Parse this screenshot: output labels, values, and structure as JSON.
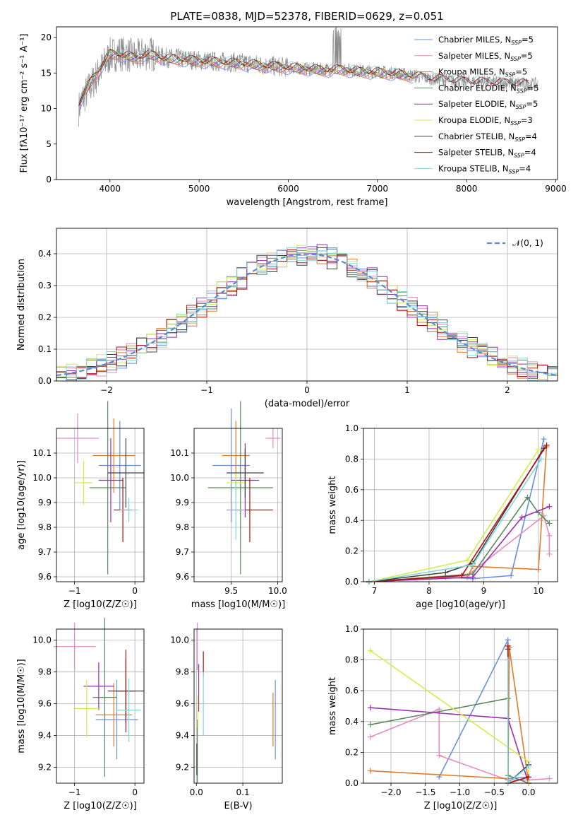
{
  "figure": {
    "title": "PLATE=0838, MJD=52378, FIBERID=0629, z=0.051"
  },
  "series": [
    {
      "name": "Chabrier MILES",
      "nssp": "5",
      "color": "#6a8fe0"
    },
    {
      "name": "Salpeter MILES",
      "nssp": "5",
      "color": "#e78ac3"
    },
    {
      "name": "Kroupa MILES",
      "nssp": "5",
      "color": "#e07b2a"
    },
    {
      "name": "Chabrier ELODIE",
      "nssp": "5",
      "color": "#5b8a5b"
    },
    {
      "name": "Salpeter ELODIE",
      "nssp": "5",
      "color": "#9a2fb0"
    },
    {
      "name": "Kroupa ELODIE",
      "nssp": "3",
      "color": "#d3ec4e"
    },
    {
      "name": "Chabrier STELIB",
      "nssp": "4",
      "color": "#404040"
    },
    {
      "name": "Salpeter STELIB",
      "nssp": "4",
      "color": "#b01010"
    },
    {
      "name": "Kroupa STELIB",
      "nssp": "4",
      "color": "#7fd8d8"
    }
  ],
  "chart_data": [
    {
      "id": "spectrum",
      "type": "line",
      "title": "PLATE=0838, MJD=52378, FIBERID=0629, z=0.051",
      "xlabel": "wavelength [Angstrom, rest frame]",
      "ylabel": "Flux [fλ10⁻¹⁷ erg cm⁻² s⁻¹ A⁻¹]",
      "xlim": [
        3400,
        9020
      ],
      "ylim": [
        0,
        21.5
      ],
      "xticks": [
        4000,
        5000,
        6000,
        7000,
        8000,
        9000
      ],
      "yticks": [
        0,
        5,
        10,
        15,
        20
      ],
      "legend": "upper-right",
      "data_color": "#8c8c8c",
      "data_x": [
        3650,
        3700,
        3800,
        3900,
        4000,
        4100,
        4200,
        4300,
        4400,
        4500,
        4600,
        4800,
        5000,
        5200,
        5400,
        5600,
        5800,
        6000,
        6200,
        6400,
        6600,
        6800,
        7000,
        7200,
        7400,
        7600,
        7800,
        8000,
        8200,
        8400,
        8600,
        8800
      ],
      "data_y": [
        10.0,
        11.5,
        13.5,
        15.5,
        17.5,
        17.8,
        17.6,
        17.2,
        17.8,
        17.6,
        17.2,
        17.0,
        16.8,
        16.6,
        16.5,
        16.3,
        16.0,
        15.8,
        15.6,
        15.5,
        15.6,
        15.3,
        15.2,
        15.0,
        14.6,
        14.2,
        14.0,
        13.8,
        13.7,
        13.6,
        13.5,
        13.4
      ],
      "model_x": [
        3650,
        3700,
        3800,
        3900,
        4000,
        4100,
        4200,
        4300,
        4400,
        4500,
        4600,
        4800,
        5000,
        5200,
        5400,
        5600,
        5800,
        6000,
        6200,
        6400,
        6600,
        6800,
        7000,
        7200,
        7400,
        7500,
        7600,
        7800,
        8000,
        8200,
        8400,
        8600,
        8700
      ],
      "model_y": [
        10.5,
        11.8,
        14.0,
        15.8,
        17.6,
        17.5,
        17.3,
        17.0,
        17.5,
        17.4,
        17.0,
        16.8,
        16.6,
        16.5,
        16.3,
        16.1,
        15.9,
        15.7,
        15.5,
        15.3,
        15.4,
        15.1,
        15.0,
        14.8,
        14.5,
        14.3,
        14.1,
        13.9,
        13.7,
        13.6,
        13.5,
        13.4,
        13.3
      ]
    },
    {
      "id": "residuals",
      "type": "histogram",
      "xlabel": "(data-model)/error",
      "ylabel": "Normed distribution",
      "xlim": [
        -2.5,
        2.5
      ],
      "ylim": [
        0,
        0.48
      ],
      "xticks": [
        -2,
        -1,
        0,
        1,
        2
      ],
      "yticks": [
        0.0,
        0.1,
        0.2,
        0.3,
        0.4
      ],
      "grid": true,
      "legend": "upper-right",
      "gauss_label": "𝒩(0, 1)",
      "gauss_color": "#5b8bd6",
      "bin_width": 0.1
    },
    {
      "id": "age_vs_Z",
      "type": "scatter",
      "xlabel": "Z [log10(Z/Z☉)]",
      "ylabel": "age  [log10(age/yr)]",
      "xlim": [
        -1.3,
        0.15
      ],
      "ylim": [
        9.58,
        10.2
      ],
      "xticks": [
        -1,
        0
      ],
      "yticks": [
        9.6,
        9.7,
        9.8,
        9.9,
        10.0,
        10.1
      ],
      "points": [
        {
          "x": -0.25,
          "y": 10.05,
          "xerr": 0.35,
          "yerr": 0.18
        },
        {
          "x": -0.95,
          "y": 10.16,
          "xerr": 0.35,
          "yerr": 0.1
        },
        {
          "x": -0.35,
          "y": 10.09,
          "xerr": 0.35,
          "yerr": 0.15
        },
        {
          "x": -0.45,
          "y": 9.96,
          "xerr": 0.3,
          "yerr": 0.35
        },
        {
          "x": -0.4,
          "y": 9.99,
          "xerr": 0.2,
          "yerr": 0.17
        },
        {
          "x": -0.85,
          "y": 9.98,
          "xerr": 0.15,
          "yerr": 0.09
        },
        {
          "x": -0.15,
          "y": 10.02,
          "xerr": 0.3,
          "yerr": 0.14
        },
        {
          "x": -0.2,
          "y": 9.87,
          "xerr": 0.15,
          "yerr": 0.13
        },
        {
          "x": -0.1,
          "y": 9.87,
          "xerr": 0.15,
          "yerr": 0.05
        }
      ]
    },
    {
      "id": "age_vs_mass",
      "type": "scatter",
      "xlabel": "mass [log10(M/M☉)]",
      "ylabel": "",
      "xlim": [
        9.1,
        10.05
      ],
      "ylim": [
        9.58,
        10.2
      ],
      "xticks": [
        9.5,
        10.0
      ],
      "yticks": [
        9.6,
        9.7,
        9.8,
        9.9,
        10.0,
        10.1
      ],
      "points": [
        {
          "x": 9.5,
          "y": 10.05,
          "xerr": 0.2,
          "yerr": 0.23
        },
        {
          "x": 9.95,
          "y": 10.16,
          "xerr": 0.08,
          "yerr": 0.04
        },
        {
          "x": 9.55,
          "y": 10.09,
          "xerr": 0.15,
          "yerr": 0.14
        },
        {
          "x": 9.6,
          "y": 9.96,
          "xerr": 0.35,
          "yerr": 0.35
        },
        {
          "x": 9.65,
          "y": 9.99,
          "xerr": 0.15,
          "yerr": 0.15
        },
        {
          "x": 9.55,
          "y": 9.98,
          "xerr": 0.1,
          "yerr": 0.04
        },
        {
          "x": 9.65,
          "y": 10.02,
          "xerr": 0.2,
          "yerr": 0.1
        },
        {
          "x": 9.7,
          "y": 9.87,
          "xerr": 0.25,
          "yerr": 0.13
        },
        {
          "x": 9.55,
          "y": 9.87,
          "xerr": 0.1,
          "yerr": 0.12
        }
      ]
    },
    {
      "id": "weight_vs_age",
      "type": "line",
      "xlabel": "age  [log10(age/yr)]",
      "ylabel": "mass weight",
      "xlim": [
        6.8,
        10.35
      ],
      "ylim": [
        0,
        1.0
      ],
      "xticks": [
        7,
        8,
        9,
        10
      ],
      "yticks": [
        0.0,
        0.2,
        0.4,
        0.6,
        0.8,
        1.0
      ],
      "grid": true,
      "lines": [
        {
          "x": [
            6.9,
            8.3,
            8.8,
            9.5,
            10.1
          ],
          "y": [
            0.0,
            0.03,
            0.02,
            0.04,
            0.93
          ]
        },
        {
          "x": [
            6.9,
            8.7,
            10.1,
            10.2,
            10.2
          ],
          "y": [
            0.0,
            0.04,
            0.43,
            0.3,
            0.18
          ]
        },
        {
          "x": [
            6.9,
            8.7,
            8.8,
            10.0,
            10.15
          ],
          "y": [
            0.0,
            0.03,
            0.1,
            0.08,
            0.88
          ]
        },
        {
          "x": [
            6.9,
            8.8,
            9.8,
            10.0,
            10.2
          ],
          "y": [
            0.0,
            0.05,
            0.55,
            0.45,
            0.38
          ]
        },
        {
          "x": [
            6.9,
            8.8,
            9.7,
            10.2
          ],
          "y": [
            0.0,
            0.03,
            0.42,
            0.49
          ]
        },
        {
          "x": [
            6.9,
            8.7,
            10.0
          ],
          "y": [
            0.0,
            0.14,
            0.86
          ]
        },
        {
          "x": [
            6.9,
            8.3,
            8.8,
            10.1
          ],
          "y": [
            0.0,
            0.06,
            0.12,
            0.87
          ]
        },
        {
          "x": [
            6.9,
            8.6,
            10.15
          ],
          "y": [
            0.0,
            0.04,
            0.89
          ]
        },
        {
          "x": [
            6.9,
            8.8,
            10.05
          ],
          "y": [
            0.0,
            0.11,
            0.8
          ]
        }
      ]
    },
    {
      "id": "mass_vs_Z",
      "type": "scatter",
      "xlabel": "Z [log10(Z/Z☉)]",
      "ylabel": "mass [log10(M/M☉)]",
      "xlim": [
        -1.3,
        0.15
      ],
      "ylim": [
        9.1,
        10.07
      ],
      "xticks": [
        -1,
        0
      ],
      "yticks": [
        9.2,
        9.4,
        9.6,
        9.8,
        10.0
      ],
      "points": [
        {
          "x": -0.3,
          "y": 9.5,
          "xerr": 0.35,
          "yerr": 0.25
        },
        {
          "x": -1.0,
          "y": 9.96,
          "xerr": 0.35,
          "yerr": 0.15
        },
        {
          "x": -0.35,
          "y": 9.53,
          "xerr": 0.3,
          "yerr": 0.2
        },
        {
          "x": -0.5,
          "y": 9.64,
          "xerr": 0.2,
          "yerr": 0.5
        },
        {
          "x": -0.6,
          "y": 9.71,
          "xerr": 0.25,
          "yerr": 0.15
        },
        {
          "x": -0.8,
          "y": 9.57,
          "xerr": 0.2,
          "yerr": 0.18
        },
        {
          "x": -0.15,
          "y": 9.68,
          "xerr": 0.3,
          "yerr": 0.2
        },
        {
          "x": -0.15,
          "y": 9.68,
          "xerr": 0.15,
          "yerr": 0.26
        },
        {
          "x": -0.1,
          "y": 9.56,
          "xerr": 0.2,
          "yerr": 0.2
        }
      ]
    },
    {
      "id": "mass_vs_EBV",
      "type": "scatter",
      "xlabel": "E(B-V)",
      "ylabel": "",
      "xlim": [
        -0.005,
        0.185
      ],
      "ylim": [
        9.1,
        10.07
      ],
      "xticks": [
        0.0,
        0.1
      ],
      "yticks": [
        9.2,
        9.4,
        9.6,
        9.8,
        10.0
      ],
      "points": [
        {
          "x": 0.17,
          "y": 9.5,
          "xerr": 0,
          "yerr": 0.25
        },
        {
          "x": 0.002,
          "y": 9.96,
          "xerr": 0,
          "yerr": 0.15
        },
        {
          "x": 0.165,
          "y": 9.5,
          "xerr": 0,
          "yerr": 0.17
        },
        {
          "x": 0.002,
          "y": 9.3,
          "xerr": 0,
          "yerr": 0.2
        },
        {
          "x": 0.005,
          "y": 9.7,
          "xerr": 0,
          "yerr": 0.15
        },
        {
          "x": 0.003,
          "y": 9.55,
          "xerr": 0,
          "yerr": 0.1
        },
        {
          "x": 0.001,
          "y": 9.25,
          "xerr": 0,
          "yerr": 0.1
        },
        {
          "x": 0.015,
          "y": 9.85,
          "xerr": 0,
          "yerr": 0.08
        },
        {
          "x": 0.015,
          "y": 9.6,
          "xerr": 0,
          "yerr": 0.2
        }
      ]
    },
    {
      "id": "weight_vs_Z",
      "type": "line",
      "xlabel": "Z [log10(Z/Z☉)]",
      "ylabel": "mass weight",
      "xlim": [
        -2.4,
        0.42
      ],
      "ylim": [
        0,
        1.0
      ],
      "xticks": [
        -2.0,
        -1.5,
        -1.0,
        -0.5,
        0.0
      ],
      "yticks": [
        0.0,
        0.2,
        0.4,
        0.6,
        0.8,
        1.0
      ],
      "grid": true,
      "lines": [
        {
          "x": [
            -1.3,
            -0.3,
            -0.3,
            0.0,
            0.0
          ],
          "y": [
            0.04,
            0.93,
            0.03,
            0.04,
            0.0
          ]
        },
        {
          "x": [
            -2.3,
            -1.3,
            -1.3,
            -0.3,
            0.0,
            0.3
          ],
          "y": [
            0.3,
            0.48,
            0.18,
            0.02,
            0.02,
            0.03
          ]
        },
        {
          "x": [
            -2.3,
            -0.3,
            -0.28,
            0.0
          ],
          "y": [
            0.08,
            0.03,
            0.88,
            0.0
          ]
        },
        {
          "x": [
            -2.3,
            -0.3,
            -0.3,
            0.0
          ],
          "y": [
            0.38,
            0.55,
            0.05,
            0.0
          ]
        },
        {
          "x": [
            -2.3,
            -0.3,
            0.0
          ],
          "y": [
            0.49,
            0.42,
            0.0
          ]
        },
        {
          "x": [
            -2.3,
            0.0,
            0.0
          ],
          "y": [
            0.86,
            0.14,
            0.0
          ]
        },
        {
          "x": [
            -0.3,
            -0.3,
            0.0
          ],
          "y": [
            0.87,
            0.0,
            0.12
          ]
        },
        {
          "x": [
            -0.3,
            -0.3,
            0.0
          ],
          "y": [
            0.89,
            0.0,
            0.04
          ]
        },
        {
          "x": [
            -0.3,
            -0.3,
            0.0
          ],
          "y": [
            0.8,
            0.0,
            0.11
          ]
        }
      ]
    }
  ]
}
